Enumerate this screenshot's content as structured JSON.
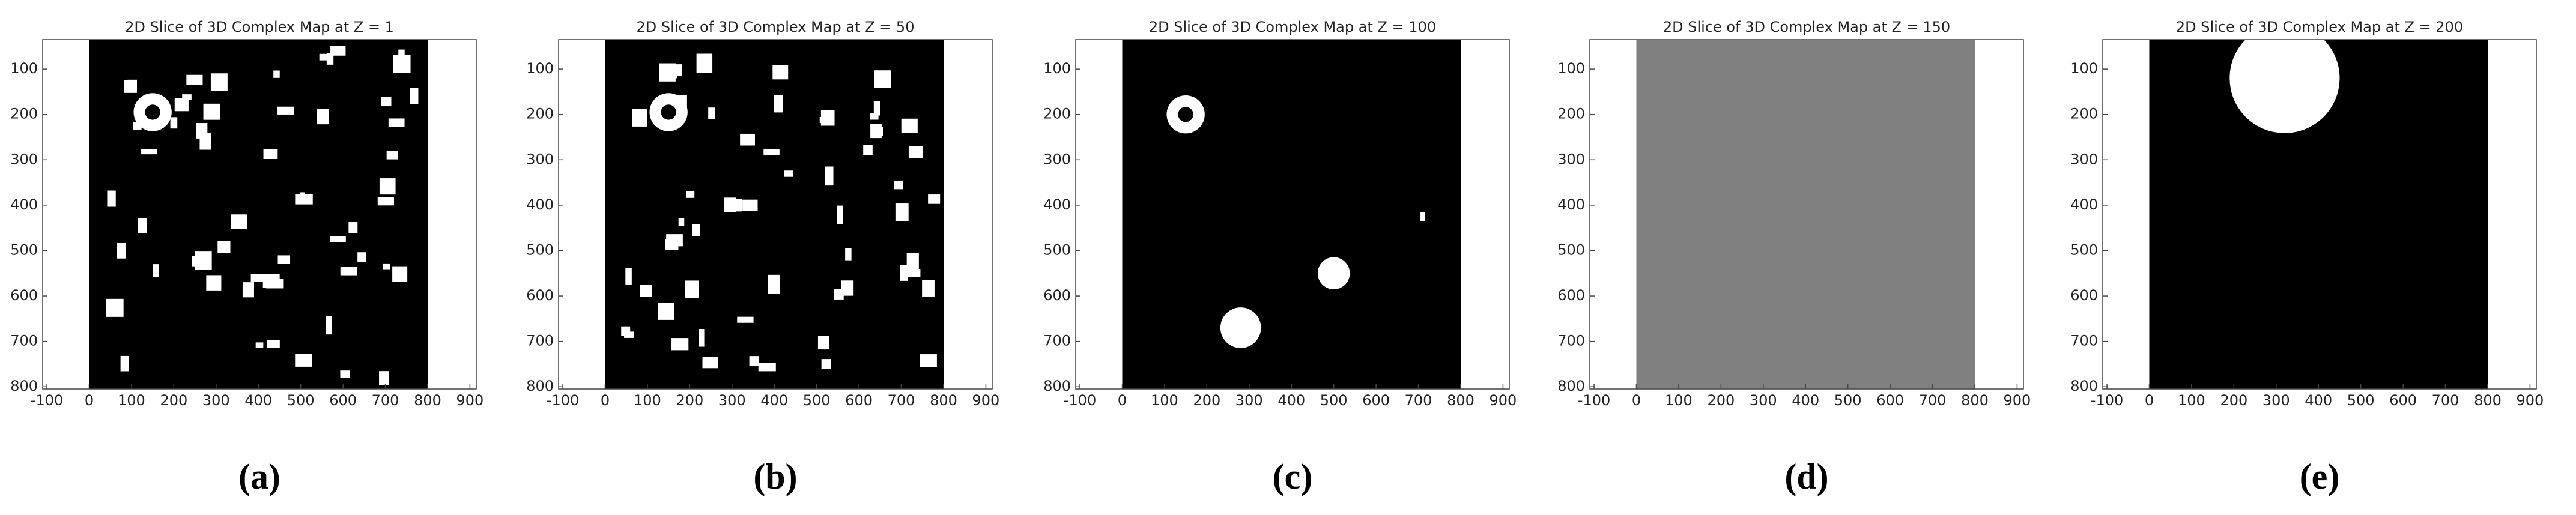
{
  "chart_data": [
    {
      "type": "image",
      "title": "2D Slice of 3D Complex Map at Z = 1",
      "caption": "(a)",
      "background": "#000000",
      "xlim": [
        -110,
        915
      ],
      "ylim": [
        805,
        35
      ],
      "xticks": [
        -100,
        0,
        100,
        200,
        300,
        400,
        500,
        600,
        700,
        800,
        900
      ],
      "yticks": [
        100,
        200,
        300,
        400,
        500,
        600,
        700,
        800
      ]
    },
    {
      "type": "image",
      "title": "2D Slice of 3D Complex Map at Z = 50",
      "caption": "(b)",
      "background": "#000000",
      "xlim": [
        -110,
        915
      ],
      "ylim": [
        805,
        35
      ],
      "xticks": [
        -100,
        0,
        100,
        200,
        300,
        400,
        500,
        600,
        700,
        800,
        900
      ],
      "yticks": [
        100,
        200,
        300,
        400,
        500,
        600,
        700,
        800
      ]
    },
    {
      "type": "image",
      "title": "2D Slice of 3D Complex Map at Z = 100",
      "caption": "(c)",
      "background": "#000000",
      "xlim": [
        -110,
        915
      ],
      "ylim": [
        805,
        35
      ],
      "xticks": [
        -100,
        0,
        100,
        200,
        300,
        400,
        500,
        600,
        700,
        800,
        900
      ],
      "yticks": [
        100,
        200,
        300,
        400,
        500,
        600,
        700,
        800
      ]
    },
    {
      "type": "image",
      "title": "2D Slice of 3D Complex Map at Z = 150",
      "caption": "(d)",
      "background": "#808080",
      "xlim": [
        -110,
        915
      ],
      "ylim": [
        805,
        35
      ],
      "xticks": [
        -100,
        0,
        100,
        200,
        300,
        400,
        500,
        600,
        700,
        800,
        900
      ],
      "yticks": [
        100,
        200,
        300,
        400,
        500,
        600,
        700,
        800
      ]
    },
    {
      "type": "image",
      "title": "2D Slice of 3D Complex Map at Z = 200",
      "caption": "(e)",
      "background": "#000000",
      "xlim": [
        -110,
        915
      ],
      "ylim": [
        805,
        35
      ],
      "xticks": [
        -100,
        0,
        100,
        200,
        300,
        400,
        500,
        600,
        700,
        800,
        900
      ],
      "yticks": [
        100,
        200,
        300,
        400,
        500,
        600,
        700,
        800
      ]
    }
  ]
}
